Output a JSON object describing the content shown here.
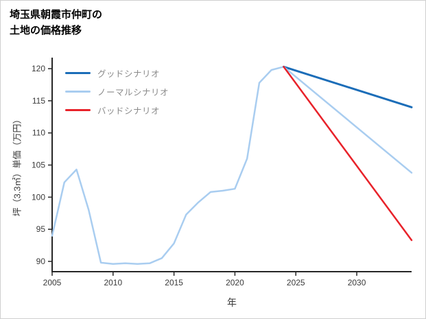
{
  "page": {
    "title_line1": "埼玉県朝霞市仲町の",
    "title_line2": "土地の価格推移"
  },
  "chart_data": {
    "type": "line",
    "title": "埼玉県朝霞市仲町の土地の価格推移",
    "xlabel": "年",
    "ylabel": "坪（3.3㎡）単価（万円）",
    "xlim": [
      2005,
      2034.5
    ],
    "ylim": [
      88.4,
      121.4
    ],
    "x_ticks": [
      2005,
      2010,
      2015,
      2020,
      2025,
      2030
    ],
    "y_ticks": [
      90,
      95,
      100,
      105,
      110,
      115,
      120
    ],
    "grid": false,
    "legend_position": "upper-left-inside",
    "axis_color": "#262626",
    "tick_label_color": "#3a3a3a",
    "legend": [
      {
        "label": "グッドシナリオ",
        "color": "#1b6db8"
      },
      {
        "label": "ノーマルシナリオ",
        "color": "#a9cdf0"
      },
      {
        "label": "バッドシナリオ",
        "color": "#e8222a"
      }
    ],
    "series": [
      {
        "name": "history",
        "color": "#a9cdf0",
        "width": 2.5,
        "x": [
          2005,
          2006,
          2007,
          2008,
          2009,
          2010,
          2011,
          2012,
          2013,
          2014,
          2015,
          2016,
          2017,
          2018,
          2019,
          2020,
          2021,
          2022,
          2023,
          2024
        ],
        "values": [
          94.0,
          102.3,
          104.3,
          98.0,
          89.8,
          89.6,
          89.7,
          89.6,
          89.7,
          90.5,
          92.8,
          97.3,
          99.2,
          100.8,
          101.0,
          101.3,
          106.0,
          117.8,
          119.8,
          120.3
        ]
      },
      {
        "name": "good-scenario",
        "color": "#1b6db8",
        "width": 3,
        "x": [
          2024,
          2034.5
        ],
        "values": [
          120.3,
          114.0
        ]
      },
      {
        "name": "normal-scenario",
        "color": "#a9cdf0",
        "width": 2.5,
        "x": [
          2024,
          2034.5
        ],
        "values": [
          120.3,
          103.8
        ]
      },
      {
        "name": "bad-scenario",
        "color": "#e8222a",
        "width": 2.5,
        "x": [
          2024,
          2034.5
        ],
        "values": [
          120.3,
          93.3
        ]
      }
    ]
  }
}
